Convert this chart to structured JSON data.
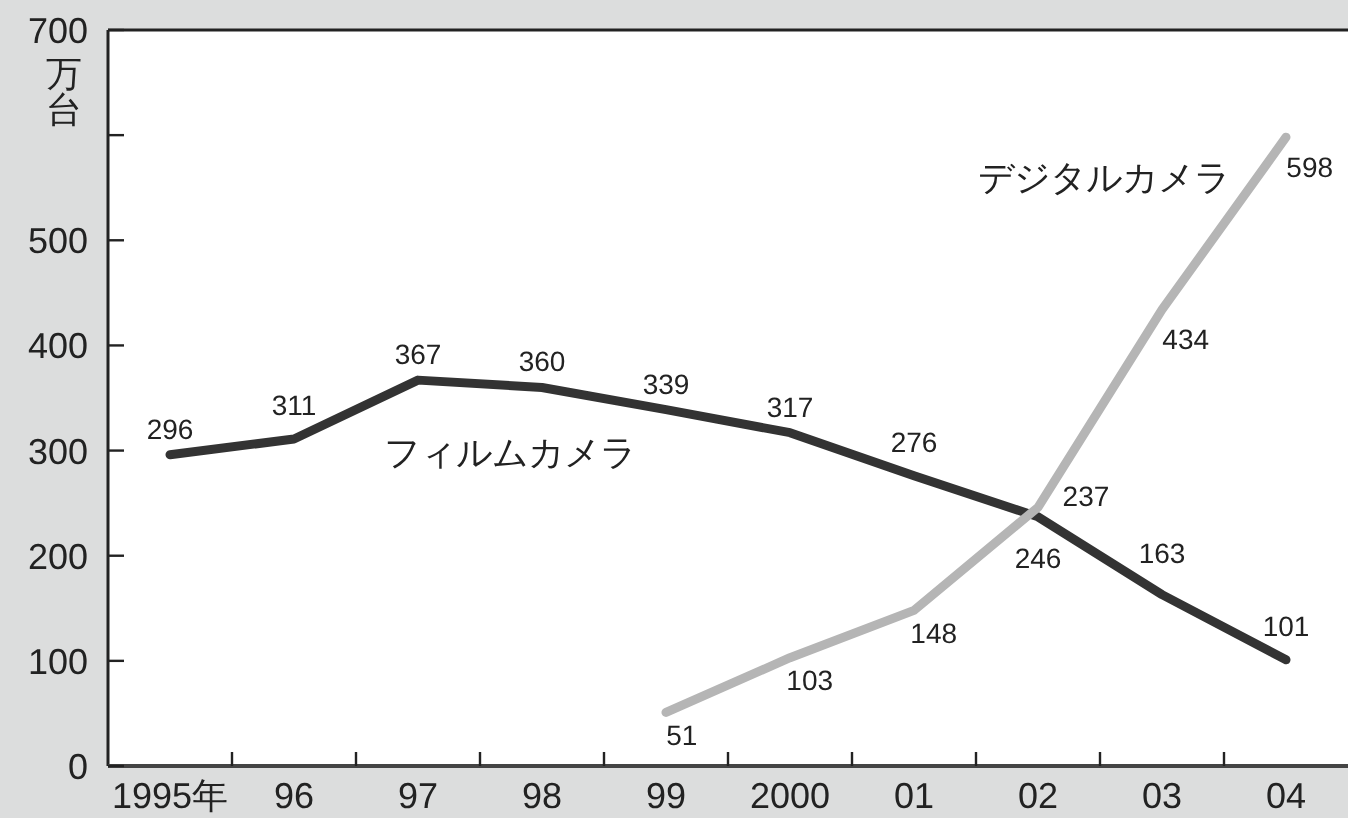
{
  "chart_data": {
    "type": "line",
    "ylabel": "万台",
    "categories": [
      "1995年",
      "96",
      "97",
      "98",
      "99",
      "2000",
      "01",
      "02",
      "03",
      "04"
    ],
    "series": [
      {
        "name": "フィルムカメラ",
        "color": "#333333",
        "values": [
          296,
          311,
          367,
          360,
          339,
          317,
          276,
          237,
          163,
          101
        ]
      },
      {
        "name": "デジタルカメラ",
        "color": "#b5b5b5",
        "values": [
          null,
          null,
          null,
          null,
          51,
          103,
          148,
          246,
          434,
          598
        ]
      }
    ],
    "ylim": [
      0,
      700
    ],
    "yticks": [
      0,
      100,
      200,
      300,
      400,
      500,
      {
        "value": 600,
        "label": null
      },
      700
    ],
    "data_labels": true
  }
}
